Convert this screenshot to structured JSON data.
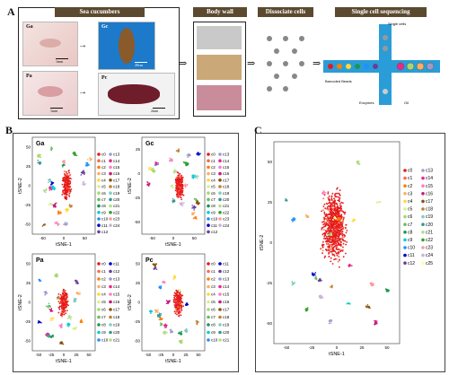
{
  "panels": {
    "a": "A",
    "b": "B",
    "c": "C"
  },
  "panel_a": {
    "headers": {
      "sea_cucumbers": "Sea cucumbers",
      "body_wall": "Body wall",
      "dissociate": "Dissociate cells",
      "sequencing": "Single cell sequencing"
    },
    "species": [
      {
        "label": "Ga",
        "scale": "1mm"
      },
      {
        "label": "Gc",
        "scale": "20cm"
      },
      {
        "label": "Pa",
        "scale": "1mm"
      },
      {
        "label": "Pc",
        "scale": "2mm"
      }
    ],
    "chip_labels": {
      "single_cells": "Single cells",
      "barcoded_beads": "Barcoded Beads",
      "enzymes": "Enzymes",
      "oil": "Oil"
    }
  },
  "chart_data": [
    {
      "type": "scatter",
      "title": "Ga",
      "xlabel": "tSNE-1",
      "ylabel": "tSNE-2",
      "xticks": [
        "-50",
        "0",
        "50"
      ],
      "yticks": [
        "50",
        "25",
        "0",
        "-25",
        "-50"
      ],
      "legend": [
        "c0",
        "c1",
        "c2",
        "c3",
        "c4",
        "c5",
        "c6",
        "c7",
        "c8",
        "c9",
        "c10",
        "c11",
        "c12",
        "c13",
        "c14",
        "c15",
        "c16",
        "c17",
        "c18",
        "c19",
        "c20",
        "c21",
        "c22",
        "c23",
        "c24"
      ]
    },
    {
      "type": "scatter",
      "title": "Gc",
      "xlabel": "tSNE-1",
      "ylabel": "tSNE-2",
      "xticks": [
        "-50",
        "0",
        "50"
      ],
      "yticks": [
        "25",
        "0",
        "-25",
        "-50"
      ],
      "legend": [
        "c0",
        "c1",
        "c2",
        "c3",
        "c4",
        "c5",
        "c6",
        "c7",
        "c8",
        "c9",
        "c10",
        "c11",
        "c12",
        "c13",
        "c14",
        "c15",
        "c16",
        "c17",
        "c18",
        "c19",
        "c20",
        "c21",
        "c22",
        "c23",
        "c24"
      ]
    },
    {
      "type": "scatter",
      "title": "Pa",
      "xlabel": "tSNE-1",
      "ylabel": "tSNE-2",
      "xticks": [
        "-50",
        "-25",
        "0",
        "25",
        "50"
      ],
      "yticks": [
        "50",
        "25",
        "0",
        "-25",
        "-50"
      ],
      "legend": [
        "c0",
        "c1",
        "c2",
        "c3",
        "c4",
        "c5",
        "c6",
        "c7",
        "c8",
        "c9",
        "c10",
        "c11",
        "c12",
        "c13",
        "c14",
        "c15",
        "c16",
        "c17",
        "c18",
        "c19",
        "c20",
        "c21"
      ]
    },
    {
      "type": "scatter",
      "title": "Pc",
      "xlabel": "tSNE-1",
      "ylabel": "tSNE-2",
      "xticks": [
        "-50",
        "-25",
        "0",
        "25",
        "50"
      ],
      "yticks": [
        "50",
        "25",
        "0",
        "-25",
        "-50"
      ],
      "legend": [
        "c0",
        "c1",
        "c2",
        "c3",
        "c4",
        "c5",
        "c6",
        "c7",
        "c8",
        "c9",
        "c10",
        "c11",
        "c12",
        "c13",
        "c14",
        "c15",
        "c16",
        "c17",
        "c18",
        "c19",
        "c20",
        "c21"
      ]
    },
    {
      "type": "scatter",
      "title": "",
      "xlabel": "tSNE-1",
      "ylabel": "tSNE-2",
      "xticks": [
        "-50",
        "-25",
        "0",
        "25",
        "50"
      ],
      "yticks": [
        "50",
        "25",
        "0",
        "-25",
        "-50"
      ],
      "legend": [
        "c0",
        "c1",
        "c2",
        "c3",
        "c4",
        "c5",
        "c6",
        "c7",
        "c8",
        "c9",
        "c10",
        "c11",
        "c12",
        "c13",
        "c14",
        "c15",
        "c16",
        "c17",
        "c18",
        "c19",
        "c20",
        "c21",
        "c22",
        "c23",
        "c24",
        "c25"
      ]
    }
  ],
  "colors": {
    "header_bg": "#5b4a2f",
    "clusters": [
      "#e41a1c",
      "#fb6a4a",
      "#ff7f00",
      "#fdae61",
      "#ffd92f",
      "#d9ef8b",
      "#a6d96a",
      "#66bd63",
      "#1a9850",
      "#00ced1",
      "#1e90ff",
      "#0000cd",
      "#6a3d9a",
      "#9e9ac8",
      "#e7298a",
      "#f781bf",
      "#c51b7d",
      "#8c510a",
      "#bf812d",
      "#80cdc1",
      "#35978f",
      "#b2df8a",
      "#33a02c",
      "#fb9a99",
      "#cab2d6",
      "#ffff99"
    ]
  }
}
